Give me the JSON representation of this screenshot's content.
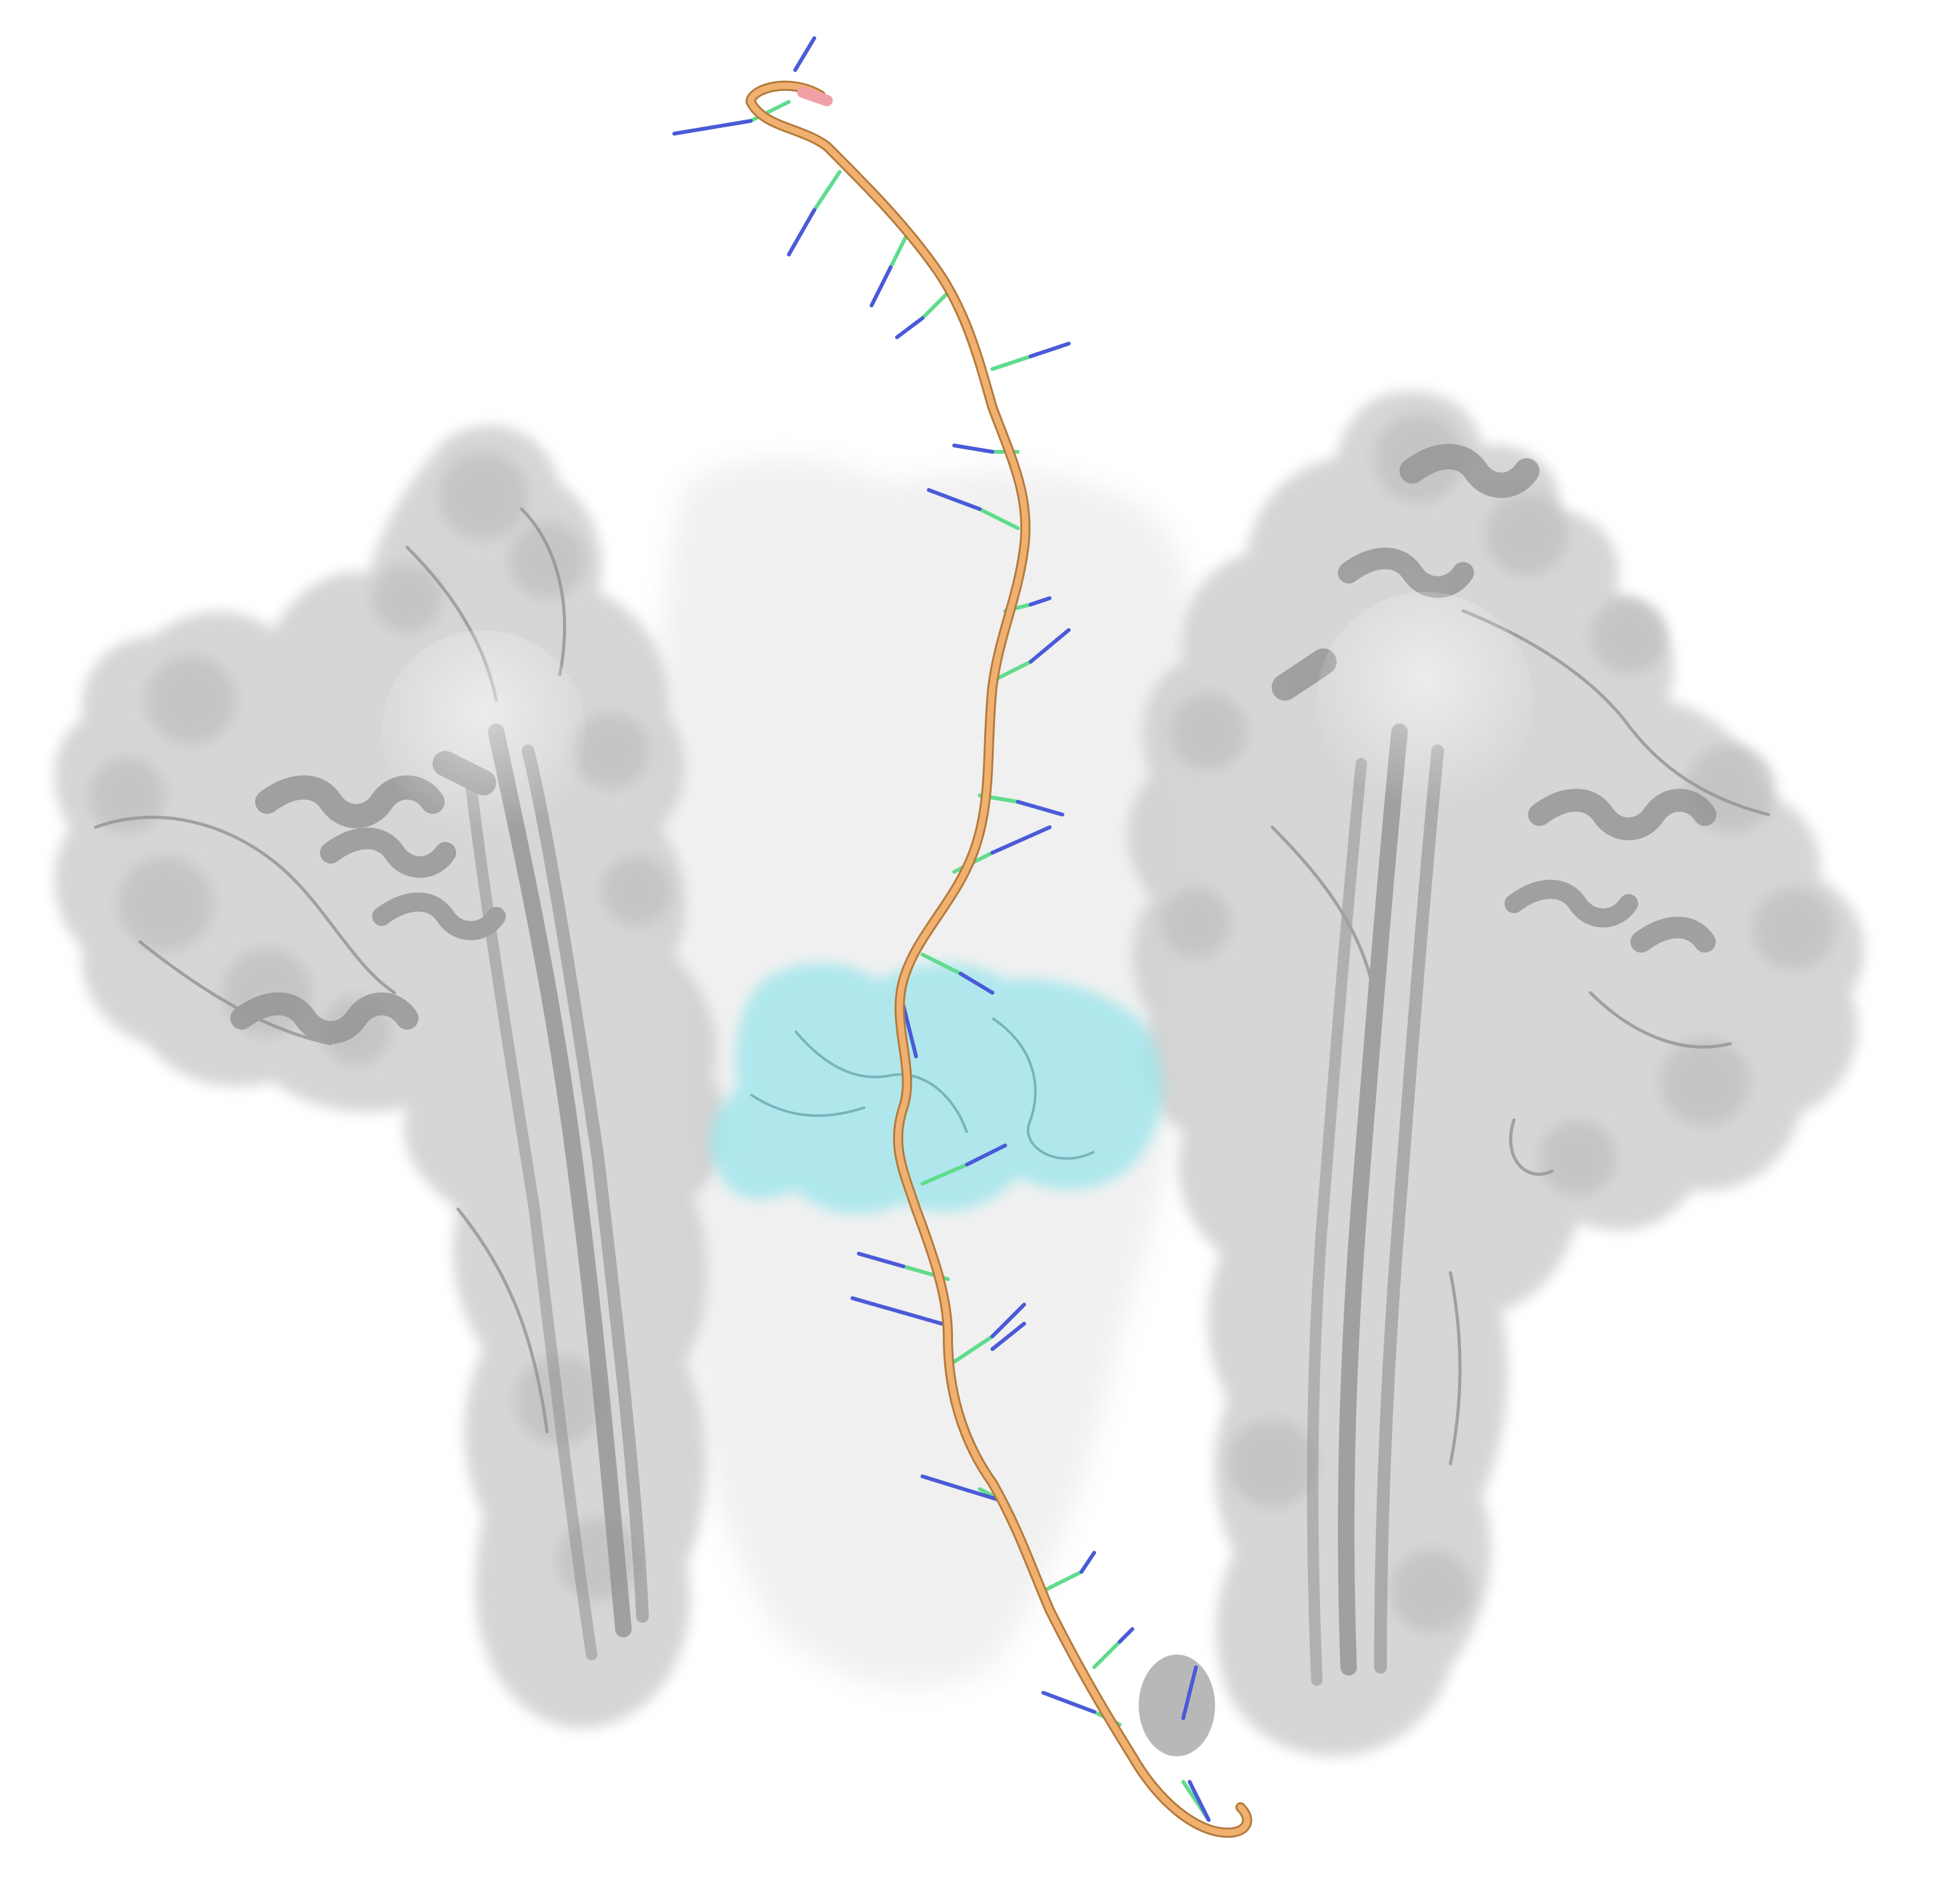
{
  "image": {
    "kind": "molecular-structure-render",
    "background": "#ffffff",
    "colors": {
      "protein_surface": "#c8c8c8",
      "protein_cartoon": "#8f8f8f",
      "binding_patch": "#8fe3ea",
      "strand_backbone": "#e6a35f",
      "strand_end_cap": "#f2a0a8",
      "base_green": "#5fdc8c",
      "base_blue": "#4a5ad8"
    }
  }
}
